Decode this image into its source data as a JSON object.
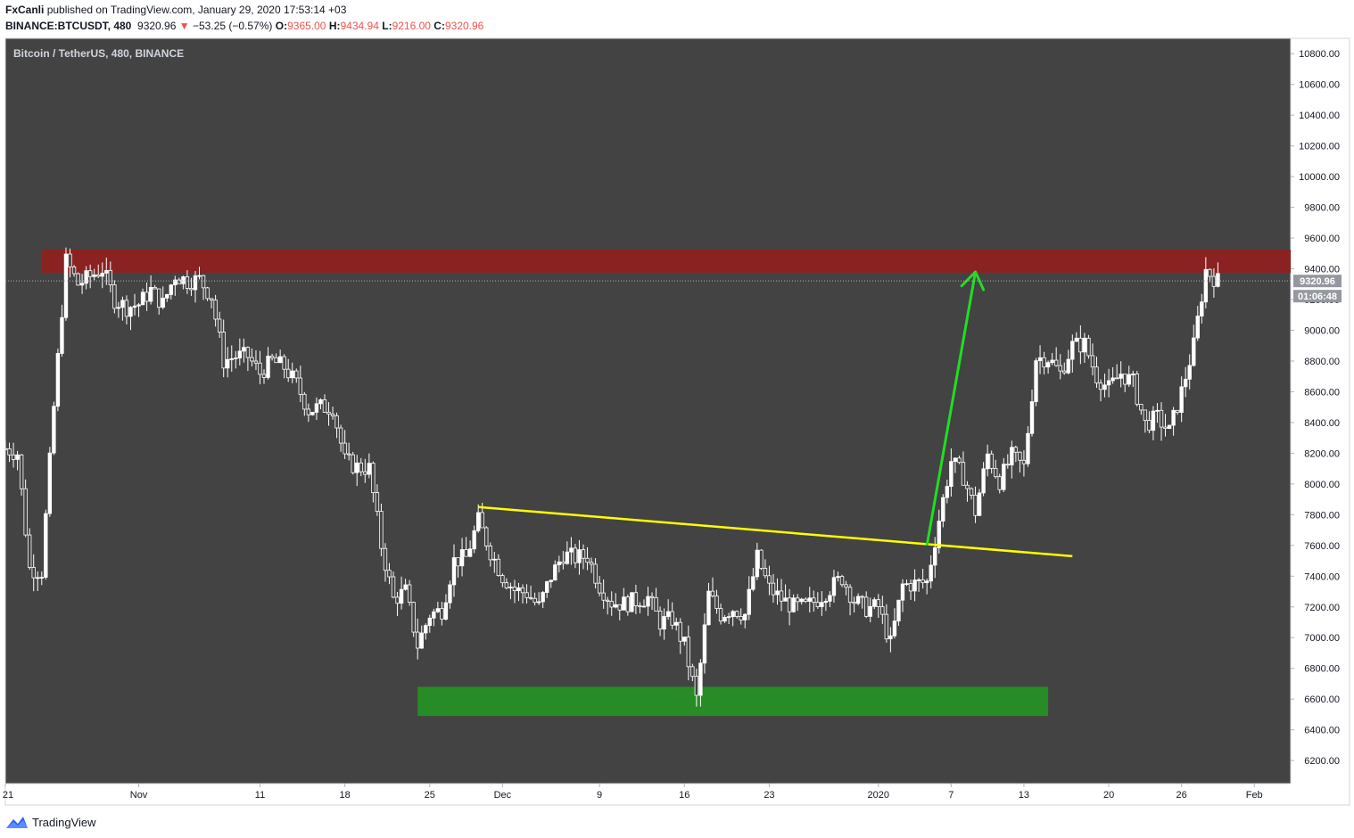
{
  "header": {
    "publisher": "FxCanli",
    "published_text": "published on TradingView.com, January 29, 2020 17:53:14 +03",
    "symbol": "BINANCE:BTCUSDT, 480",
    "last": "9320.96",
    "change_arrow": "▼",
    "change": "−53.25 (−0.57%)",
    "o_label": "O:",
    "o_value": "9365.00",
    "h_label": "H:",
    "h_value": "9434.94",
    "l_label": "L:",
    "l_value": "9216.00",
    "c_label": "C:",
    "c_value": "9320.96"
  },
  "footer": {
    "brand": "TradingView",
    "logo_icon": "tradingview-logo-icon"
  },
  "chart_data": {
    "type": "candlestick",
    "title": "Bitcoin / TetherUS, 480, BINANCE",
    "ylim": [
      6050,
      10900
    ],
    "y_ticks": [
      "10800.00",
      "10600.00",
      "10400.00",
      "10200.00",
      "10000.00",
      "9800.00",
      "9600.00",
      "9400.00",
      "9200.00",
      "9000.00",
      "8800.00",
      "8600.00",
      "8400.00",
      "8200.00",
      "8000.00",
      "7800.00",
      "7600.00",
      "7400.00",
      "7200.00",
      "7000.00",
      "6800.00",
      "6600.00",
      "6400.00",
      "6200.00"
    ],
    "x_ticks": [
      {
        "label": "21",
        "date": "2019-10-21"
      },
      {
        "label": "Nov",
        "date": "2019-11-01"
      },
      {
        "label": "11",
        "date": "2019-11-11"
      },
      {
        "label": "18",
        "date": "2019-11-18"
      },
      {
        "label": "25",
        "date": "2019-11-25"
      },
      {
        "label": "Dec",
        "date": "2019-12-01"
      },
      {
        "label": "9",
        "date": "2019-12-09"
      },
      {
        "label": "16",
        "date": "2019-12-16"
      },
      {
        "label": "23",
        "date": "2019-12-23"
      },
      {
        "label": "2020",
        "date": "2020-01-01"
      },
      {
        "label": "7",
        "date": "2020-01-07"
      },
      {
        "label": "13",
        "date": "2020-01-13"
      },
      {
        "label": "20",
        "date": "2020-01-20"
      },
      {
        "label": "26",
        "date": "2020-01-26"
      },
      {
        "label": "Feb",
        "date": "2020-02-01"
      }
    ],
    "x_range": [
      "2019-10-21",
      "2020-02-04"
    ],
    "last_price_label": "9320.96",
    "countdown_label": "01:06:48",
    "close_path": [
      [
        "2019-10-21",
        8230
      ],
      [
        "2019-10-22",
        8200
      ],
      [
        "2019-10-23",
        7450
      ],
      [
        "2019-10-24",
        7430
      ],
      [
        "2019-10-25",
        8500
      ],
      [
        "2019-10-26",
        9450
      ],
      [
        "2019-10-27",
        9300
      ],
      [
        "2019-10-28",
        9350
      ],
      [
        "2019-10-29",
        9400
      ],
      [
        "2019-10-30",
        9200
      ],
      [
        "2019-10-31",
        9150
      ],
      [
        "2019-11-01",
        9170
      ],
      [
        "2019-11-02",
        9260
      ],
      [
        "2019-11-03",
        9170
      ],
      [
        "2019-11-04",
        9360
      ],
      [
        "2019-11-05",
        9320
      ],
      [
        "2019-11-06",
        9330
      ],
      [
        "2019-11-07",
        9220
      ],
      [
        "2019-11-08",
        8800
      ],
      [
        "2019-11-09",
        8830
      ],
      [
        "2019-11-10",
        8830
      ],
      [
        "2019-11-11",
        8720
      ],
      [
        "2019-11-12",
        8800
      ],
      [
        "2019-11-13",
        8760
      ],
      [
        "2019-11-14",
        8650
      ],
      [
        "2019-11-15",
        8480
      ],
      [
        "2019-11-16",
        8500
      ],
      [
        "2019-11-17",
        8500
      ],
      [
        "2019-11-18",
        8150
      ],
      [
        "2019-11-19",
        8110
      ],
      [
        "2019-11-20",
        8100
      ],
      [
        "2019-11-21",
        7600
      ],
      [
        "2019-11-22",
        7250
      ],
      [
        "2019-11-23",
        7300
      ],
      [
        "2019-11-24",
        6950
      ],
      [
        "2019-11-25",
        7150
      ],
      [
        "2019-11-26",
        7180
      ],
      [
        "2019-11-27",
        7500
      ],
      [
        "2019-11-28",
        7520
      ],
      [
        "2019-11-29",
        7760
      ],
      [
        "2019-11-30",
        7560
      ],
      [
        "2019-12-01",
        7400
      ],
      [
        "2019-12-02",
        7310
      ],
      [
        "2019-12-03",
        7290
      ],
      [
        "2019-12-04",
        7200
      ],
      [
        "2019-12-05",
        7400
      ],
      [
        "2019-12-06",
        7540
      ],
      [
        "2019-12-07",
        7520
      ],
      [
        "2019-12-08",
        7530
      ],
      [
        "2019-12-09",
        7340
      ],
      [
        "2019-12-10",
        7230
      ],
      [
        "2019-12-11",
        7220
      ],
      [
        "2019-12-12",
        7240
      ],
      [
        "2019-12-13",
        7260
      ],
      [
        "2019-12-14",
        7100
      ],
      [
        "2019-12-15",
        7120
      ],
      [
        "2019-12-16",
        6950
      ],
      [
        "2019-12-17",
        6600
      ],
      [
        "2019-12-18",
        7280
      ],
      [
        "2019-12-19",
        7150
      ],
      [
        "2019-12-20",
        7190
      ],
      [
        "2019-12-21",
        7150
      ],
      [
        "2019-12-22",
        7520
      ],
      [
        "2019-12-23",
        7320
      ],
      [
        "2019-12-24",
        7250
      ],
      [
        "2019-12-25",
        7200
      ],
      [
        "2019-12-26",
        7200
      ],
      [
        "2019-12-27",
        7250
      ],
      [
        "2019-12-28",
        7320
      ],
      [
        "2019-12-29",
        7390
      ],
      [
        "2019-12-30",
        7240
      ],
      [
        "2019-12-31",
        7190
      ],
      [
        "2020-01-01",
        7200
      ],
      [
        "2020-01-02",
        6960
      ],
      [
        "2020-01-03",
        7340
      ],
      [
        "2020-01-04",
        7350
      ],
      [
        "2020-01-05",
        7360
      ],
      [
        "2020-01-06",
        7770
      ],
      [
        "2020-01-07",
        8150
      ],
      [
        "2020-01-08",
        8050
      ],
      [
        "2020-01-09",
        7820
      ],
      [
        "2020-01-10",
        8190
      ],
      [
        "2020-01-11",
        8020
      ],
      [
        "2020-01-12",
        8180
      ],
      [
        "2020-01-13",
        8110
      ],
      [
        "2020-01-14",
        8820
      ],
      [
        "2020-01-15",
        8820
      ],
      [
        "2020-01-16",
        8720
      ],
      [
        "2020-01-17",
        8900
      ],
      [
        "2020-01-18",
        8910
      ],
      [
        "2020-01-19",
        8700
      ],
      [
        "2020-01-20",
        8620
      ],
      [
        "2020-01-21",
        8720
      ],
      [
        "2020-01-22",
        8660
      ],
      [
        "2020-01-23",
        8390
      ],
      [
        "2020-01-24",
        8430
      ],
      [
        "2020-01-25",
        8340
      ],
      [
        "2020-01-26",
        8600
      ],
      [
        "2020-01-27",
        8900
      ],
      [
        "2020-01-28",
        9390
      ],
      [
        "2020-01-29",
        9320.96
      ]
    ],
    "zones": [
      {
        "name": "resistance",
        "color": "#8b2222",
        "y_from": 9375,
        "y_to": 9525,
        "x_from": "2019-10-24",
        "x_to": "2020-02-04"
      },
      {
        "name": "support",
        "color": "#278c25",
        "y_from": 6490,
        "y_to": 6680,
        "x_from": "2019-11-24",
        "x_to": "2020-01-15"
      }
    ],
    "annotations": [
      {
        "name": "descending-trendline",
        "color": "#ffff00",
        "from": [
          "2019-11-29",
          7850
        ],
        "to": [
          "2020-01-17",
          7530
        ]
      },
      {
        "name": "breakout-arrow",
        "color": "#22dd22",
        "from": [
          "2020-01-05",
          7600
        ],
        "to": [
          "2020-01-09",
          9380
        ]
      }
    ],
    "colors": {
      "background": "#434343",
      "candle_up": "#ffffff",
      "candle_down": "#ffffff",
      "axis_bg": "#ffffff",
      "price_tag": "#9598a1"
    },
    "grid": false,
    "legend": "none"
  }
}
